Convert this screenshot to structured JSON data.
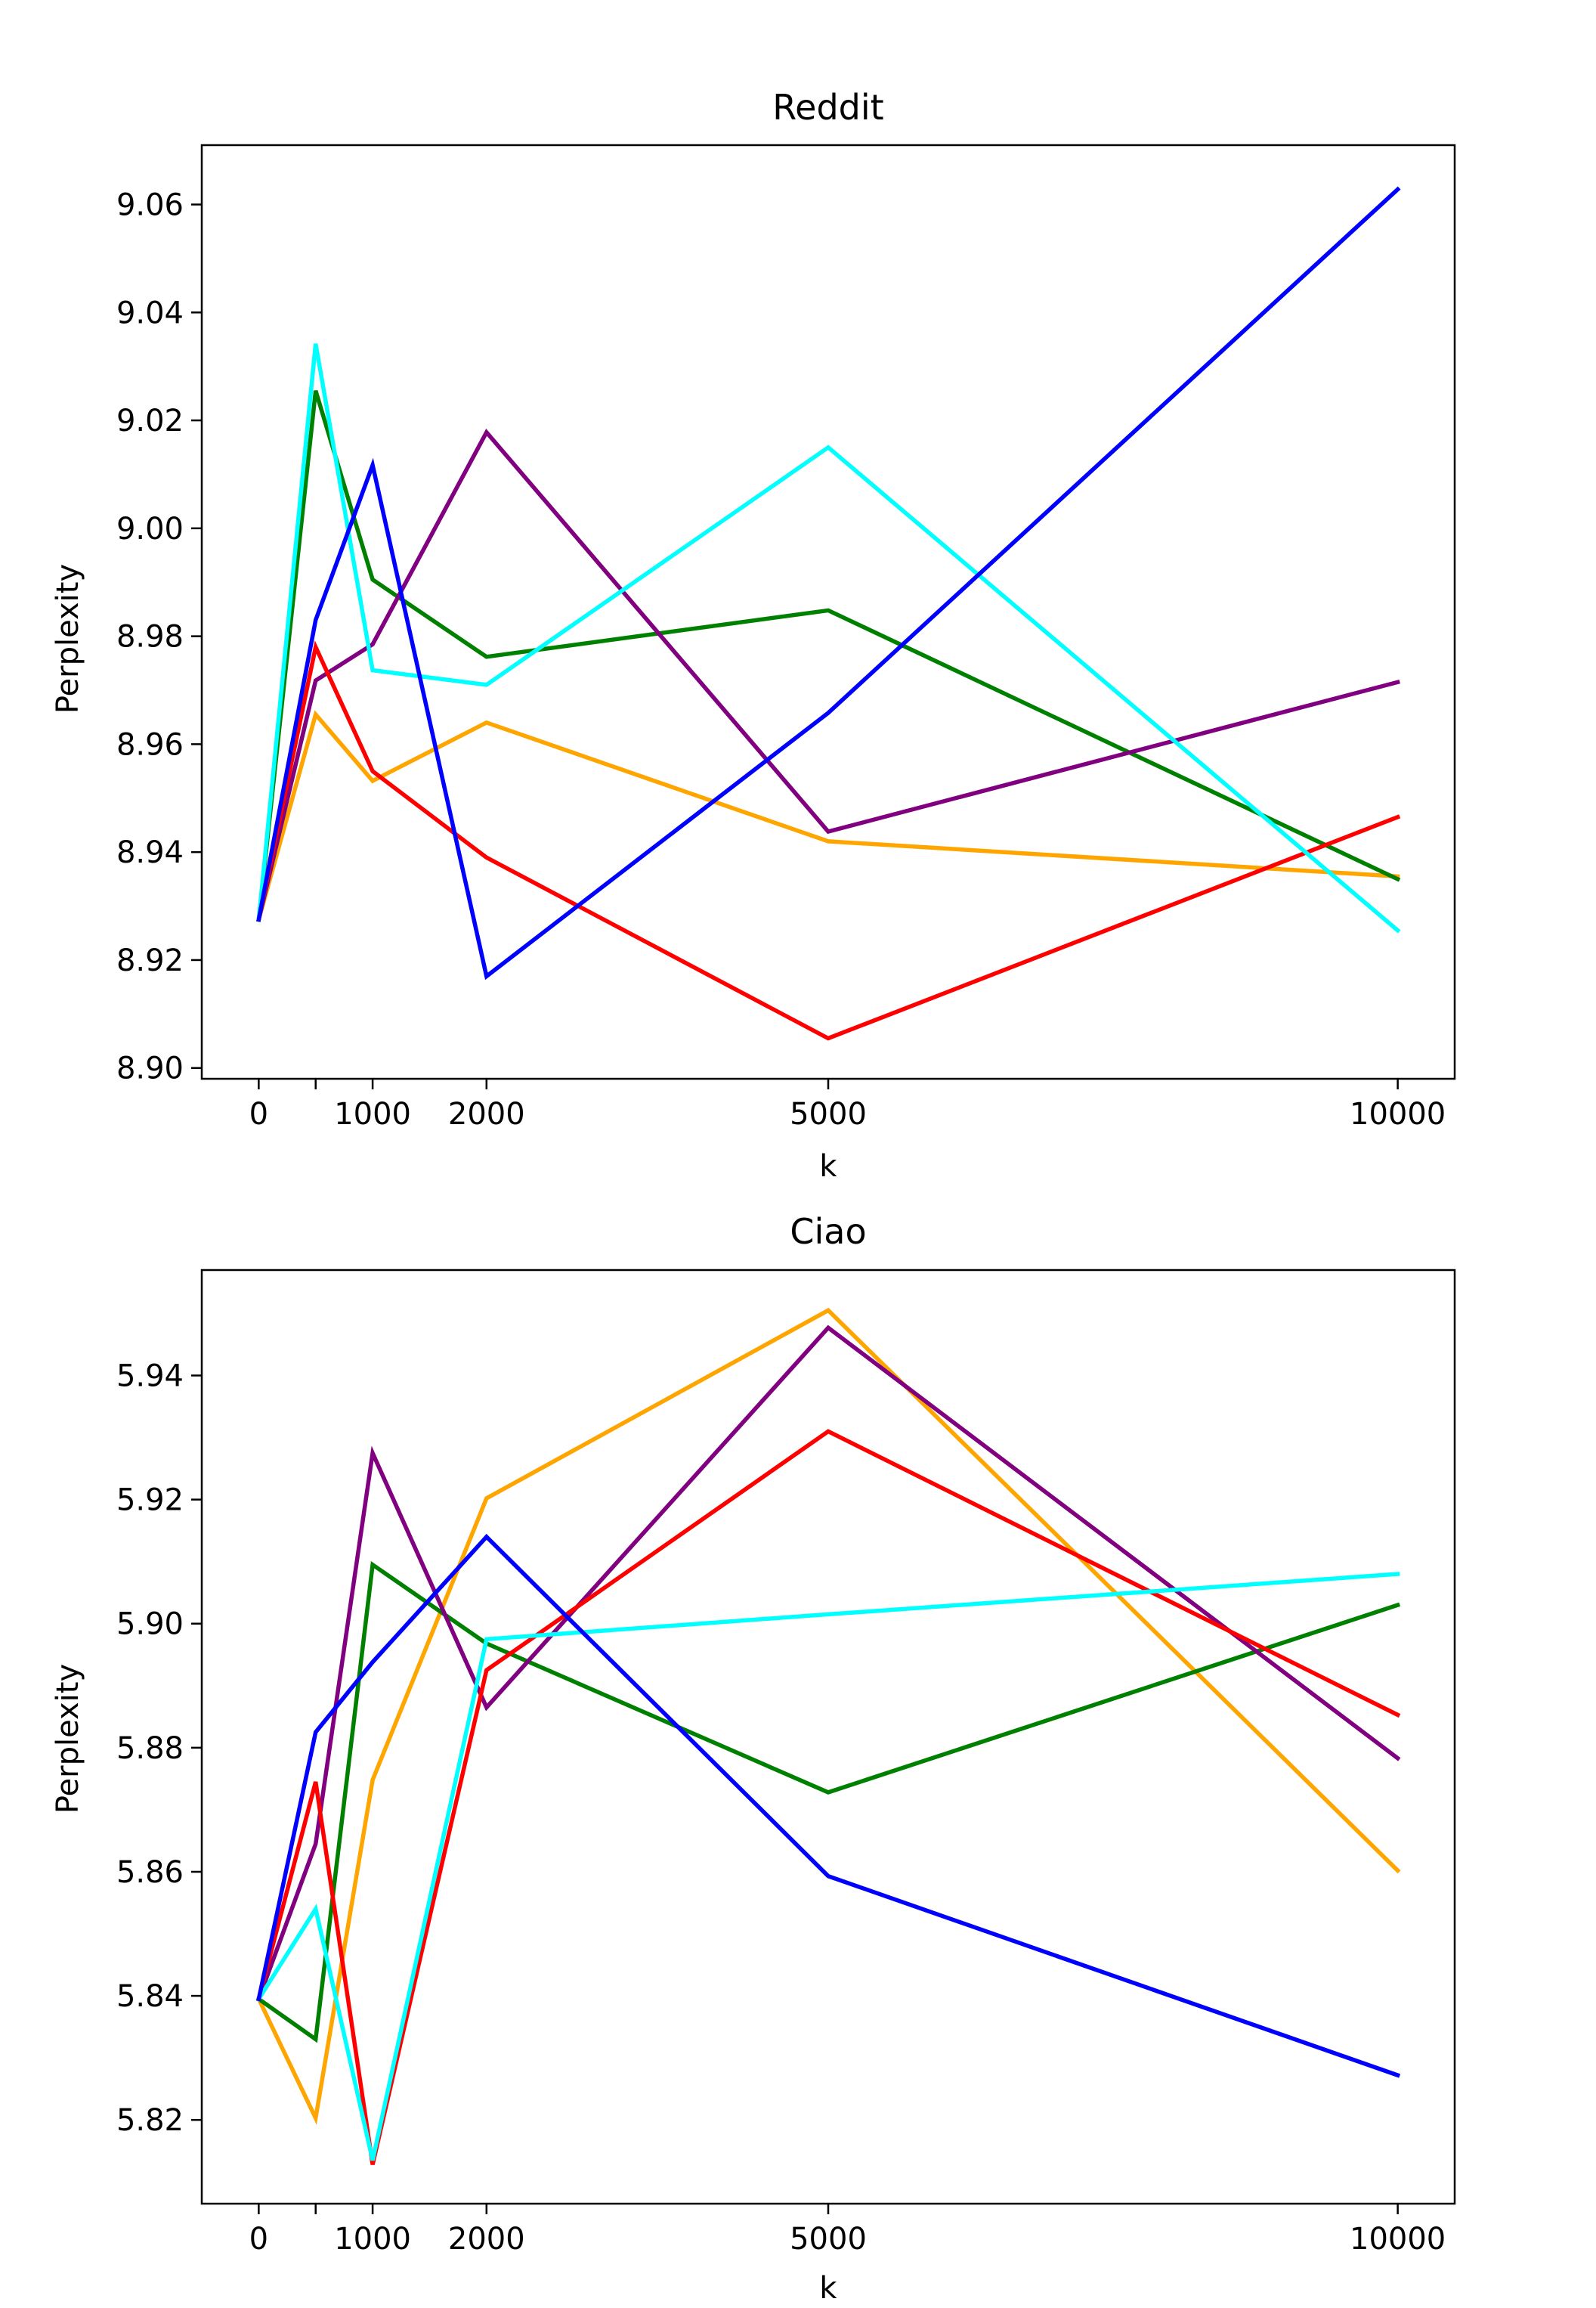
{
  "chart_data": [
    {
      "type": "line",
      "title": "Reddit",
      "xlabel": "k",
      "ylabel": "Perplexity",
      "x": [
        0,
        500,
        1000,
        2000,
        5000,
        10000
      ],
      "xticks": [
        0,
        1000,
        2000,
        5000,
        10000
      ],
      "xtick_labels": [
        "0",
        "1000",
        "2000",
        "5000",
        "10000"
      ],
      "xlim": [
        -500,
        10500
      ],
      "ylim": [
        8.898,
        9.071
      ],
      "yticks": [
        8.9,
        8.92,
        8.94,
        8.96,
        8.98,
        9.0,
        9.02,
        9.04,
        9.06
      ],
      "ytick_labels": [
        "8.90",
        "8.92",
        "8.94",
        "8.96",
        "8.98",
        "9.00",
        "9.02",
        "9.04",
        "9.06"
      ],
      "grid": false,
      "series": [
        {
          "name": "orange",
          "color": "#ffa500",
          "values": [
            8.9275,
            8.9655,
            8.9532,
            8.964,
            8.942,
            8.9355
          ]
        },
        {
          "name": "green",
          "color": "#008000",
          "values": [
            8.9275,
            9.0255,
            8.9905,
            8.9762,
            8.9848,
            8.935
          ]
        },
        {
          "name": "purple",
          "color": "#800080",
          "values": [
            8.9275,
            8.9718,
            8.9785,
            9.0178,
            8.9438,
            8.9715
          ]
        },
        {
          "name": "red",
          "color": "#ff0000",
          "values": [
            8.9275,
            8.978,
            8.955,
            8.939,
            8.9055,
            8.9465
          ]
        },
        {
          "name": "cyan",
          "color": "#00ffff",
          "values": [
            8.9275,
            9.0342,
            8.9737,
            8.971,
            9.015,
            8.9255
          ]
        },
        {
          "name": "blue",
          "color": "#0000ff",
          "values": [
            8.9275,
            8.983,
            9.0117,
            8.917,
            8.9658,
            9.0628
          ]
        }
      ]
    },
    {
      "type": "line",
      "title": "Ciao",
      "xlabel": "k",
      "ylabel": "Perplexity",
      "x": [
        0,
        500,
        1000,
        2000,
        5000,
        10000
      ],
      "xticks": [
        0,
        1000,
        2000,
        5000,
        10000
      ],
      "xtick_labels": [
        "0",
        "1000",
        "2000",
        "5000",
        "10000"
      ],
      "xlim": [
        -500,
        10500
      ],
      "ylim": [
        5.8065,
        5.957
      ],
      "yticks": [
        5.82,
        5.84,
        5.86,
        5.88,
        5.9,
        5.92,
        5.94
      ],
      "ytick_labels": [
        "5.82",
        "5.84",
        "5.86",
        "5.88",
        "5.90",
        "5.92",
        "5.94"
      ],
      "grid": false,
      "series": [
        {
          "name": "orange",
          "color": "#ffa500",
          "values": [
            5.8395,
            5.8203,
            5.8748,
            5.9202,
            5.9505,
            5.8602
          ]
        },
        {
          "name": "green",
          "color": "#008000",
          "values": [
            5.8395,
            5.833,
            5.9095,
            5.8968,
            5.8728,
            5.903
          ]
        },
        {
          "name": "purple",
          "color": "#800080",
          "values": [
            5.8395,
            5.8645,
            5.9275,
            5.8865,
            5.9477,
            5.8783
          ]
        },
        {
          "name": "red",
          "color": "#ff0000",
          "values": [
            5.8395,
            5.8745,
            5.8128,
            5.8925,
            5.931,
            5.8853
          ]
        },
        {
          "name": "cyan",
          "color": "#00ffff",
          "values": [
            5.8395,
            5.854,
            5.8135,
            5.8975,
            5.9015,
            5.908
          ]
        },
        {
          "name": "blue",
          "color": "#0000ff",
          "values": [
            5.8395,
            5.8825,
            5.8938,
            5.914,
            5.8593,
            5.8272
          ]
        }
      ]
    }
  ]
}
